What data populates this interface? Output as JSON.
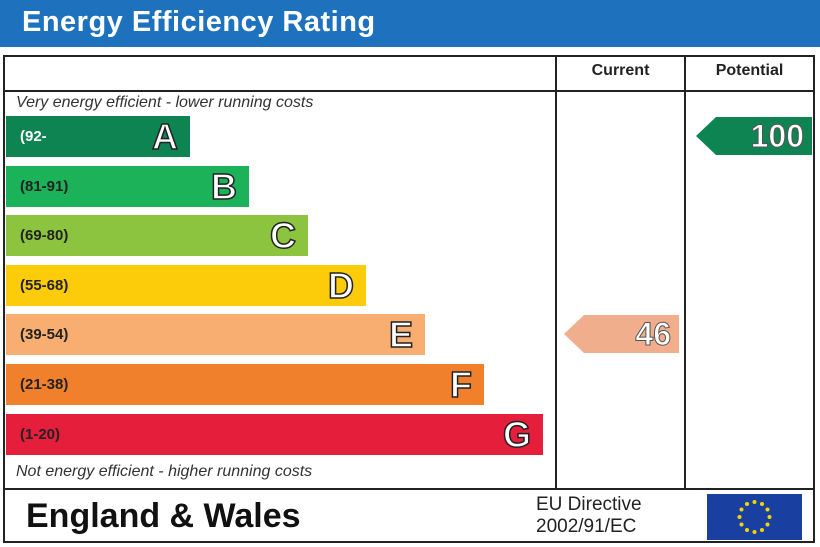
{
  "title": "Energy Efficiency Rating",
  "columns": {
    "current": "Current",
    "potential": "Potential"
  },
  "top_note": "Very energy efficient - lower running costs",
  "bottom_note": "Not energy efficient - higher running costs",
  "footer": {
    "region": "England & Wales",
    "directive_line1": "EU Directive",
    "directive_line2": "2002/91/EC"
  },
  "colors": {
    "title_bar": "#1e72bd",
    "flag": "#1940a0",
    "stars": "#f5d400"
  },
  "chart_data": {
    "type": "bar",
    "categories": [
      "A",
      "B",
      "C",
      "D",
      "E",
      "F",
      "G"
    ],
    "ranges": [
      "(92-",
      "(81-91)",
      "(69-80)",
      "(55-68)",
      "(39-54)",
      "(21-38)",
      "(1-20)"
    ],
    "colors": [
      "#0e8452",
      "#1bb25a",
      "#8cc43f",
      "#fccb09",
      "#f7ae70",
      "#f0802c",
      "#e51f3b"
    ],
    "current": {
      "value": 46,
      "band": "E",
      "color": "#f0ae8c"
    },
    "potential": {
      "value": 100,
      "band": "A",
      "color": "#0e8452"
    }
  }
}
